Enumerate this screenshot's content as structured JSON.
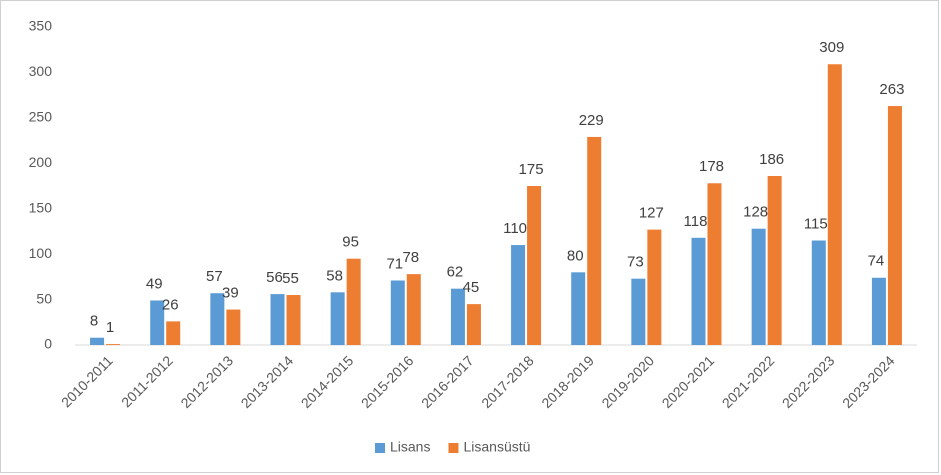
{
  "chart_data": {
    "type": "bar",
    "categories": [
      "2010-2011",
      "2011-2012",
      "2012-2013",
      "2013-2014",
      "2014-2015",
      "2015-2016",
      "2016-2017",
      "2017-2018",
      "2018-2019",
      "2019-2020",
      "2020-2021",
      "2021-2022",
      "2022-2023",
      "2023-2024"
    ],
    "series": [
      {
        "name": "Lisans",
        "color": "#5b9bd5",
        "values": [
          8,
          49,
          57,
          56,
          58,
          71,
          62,
          110,
          80,
          73,
          118,
          128,
          115,
          74
        ]
      },
      {
        "name": "Lisansüstü",
        "color": "#ed7d31",
        "values": [
          1,
          26,
          39,
          55,
          95,
          78,
          45,
          175,
          229,
          127,
          178,
          186,
          309,
          263
        ]
      }
    ],
    "ylim": [
      0,
      350
    ],
    "yticks": [
      0,
      50,
      100,
      150,
      200,
      250,
      300,
      350
    ],
    "grid": false,
    "legend": "bottom"
  }
}
